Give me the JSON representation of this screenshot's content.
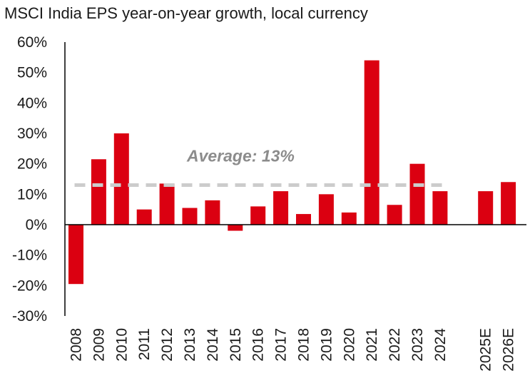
{
  "chart_data": {
    "type": "bar",
    "title": "MSCI India EPS year-on-year growth, local currency",
    "xlabel": "",
    "ylabel": "",
    "ylim": [
      -30,
      60
    ],
    "y_ticks": [
      "60%",
      "50%",
      "40%",
      "30%",
      "20%",
      "10%",
      "0%",
      "-10%",
      "-20%",
      "-30%"
    ],
    "y_tick_values": [
      60,
      50,
      40,
      30,
      20,
      10,
      0,
      -10,
      -20,
      -30
    ],
    "categories": [
      "2008",
      "2009",
      "2010",
      "2011",
      "2012",
      "2013",
      "2014",
      "2015",
      "2016",
      "2017",
      "2018",
      "2019",
      "2020",
      "2021",
      "2022",
      "2023",
      "2024",
      "",
      "2025E",
      "2026E"
    ],
    "values": [
      -19.5,
      21.5,
      30,
      5,
      13.5,
      5.5,
      8,
      -2,
      6,
      11,
      3.5,
      10,
      4,
      54,
      6.5,
      20,
      11,
      null,
      11,
      14
    ],
    "average": {
      "label": "Average: 13%",
      "value": 13
    },
    "bar_color": "#db0011",
    "average_line_color": "#cccccc",
    "average_label_color": "#8c8c8c",
    "grid": false,
    "legend": "none"
  }
}
